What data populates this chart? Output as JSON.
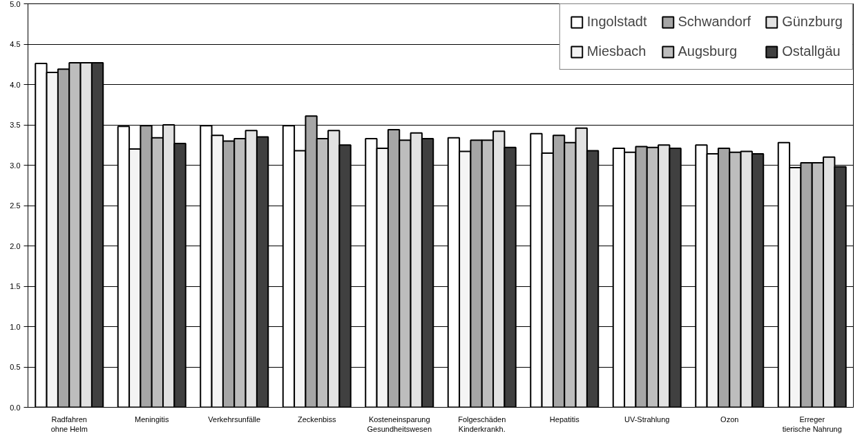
{
  "chart_data": {
    "type": "bar",
    "categories": [
      "Radfahren\nohne Helm",
      "Meningitis",
      "Verkehrsunfälle",
      "Zeckenbiss",
      "Kosteneinsparung\nGesundheitswesen",
      "Folgeschäden\nKinderkrankh.",
      "Hepatitis",
      "UV-Strahlung",
      "Ozon",
      "Erreger\ntierische Nahrung"
    ],
    "series": [
      {
        "name": "Ingolstadt",
        "color": "#ffffff",
        "values": [
          4.26,
          3.48,
          3.49,
          3.49,
          3.33,
          3.34,
          3.39,
          3.21,
          3.25,
          3.28
        ]
      },
      {
        "name": "Miesbach",
        "color": "#f4f4f4",
        "values": [
          4.15,
          3.2,
          3.37,
          3.18,
          3.21,
          3.17,
          3.15,
          3.16,
          3.14,
          2.97
        ]
      },
      {
        "name": "Schwandorf",
        "color": "#a6a6a6",
        "values": [
          4.19,
          3.49,
          3.3,
          3.61,
          3.44,
          3.31,
          3.37,
          3.23,
          3.21,
          3.03
        ]
      },
      {
        "name": "Augsburg",
        "color": "#bdbdbd",
        "values": [
          4.27,
          3.34,
          3.33,
          3.33,
          3.31,
          3.31,
          3.28,
          3.22,
          3.16,
          3.03
        ]
      },
      {
        "name": "Günzburg",
        "color": "#e2e2e2",
        "values": [
          4.27,
          3.5,
          3.43,
          3.43,
          3.4,
          3.42,
          3.46,
          3.25,
          3.17,
          3.1
        ]
      },
      {
        "name": "Ostallgäu",
        "color": "#404040",
        "values": [
          4.27,
          3.27,
          3.35,
          3.25,
          3.33,
          3.22,
          3.18,
          3.21,
          3.14,
          2.98
        ]
      }
    ],
    "ylim": [
      0,
      5
    ],
    "yticks": [
      {
        "value": 0,
        "label": "0.0"
      },
      {
        "value": 0.5,
        "label": "0.5"
      },
      {
        "value": 1,
        "label": "1.0"
      },
      {
        "value": 1.5,
        "label": "1.5"
      },
      {
        "value": 2,
        "label": "2.0"
      },
      {
        "value": 2.5,
        "label": "2.5"
      },
      {
        "value": 3,
        "label": "3.0"
      },
      {
        "value": 3.5,
        "label": "3.5"
      },
      {
        "value": 4,
        "label": "4.0"
      },
      {
        "value": 4.5,
        "label": "4.5"
      },
      {
        "value": 5,
        "label": "5.0"
      }
    ],
    "grid": "y",
    "legend": "top right"
  }
}
